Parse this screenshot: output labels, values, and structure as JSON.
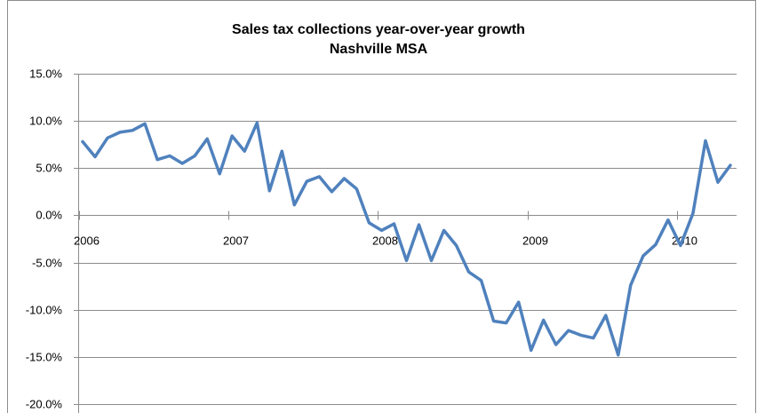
{
  "chart_data": {
    "type": "line",
    "title": "Sales tax collections year-over-year growth",
    "subtitle": "Nashville MSA",
    "xlabel": "",
    "ylabel": "",
    "ylim": [
      -20,
      15
    ],
    "y_ticks": [
      "15.0%",
      "10.0%",
      "5.0%",
      "0.0%",
      "-5.0%",
      "-10.0%",
      "-15.0%",
      "-20.0%"
    ],
    "y_tick_values": [
      15,
      10,
      5,
      0,
      -5,
      -10,
      -15,
      -20
    ],
    "x_ticks": [
      "2006",
      "2007",
      "2008",
      "2009",
      "2010"
    ],
    "grid": "horizontal",
    "line_color": "#4f81bd",
    "series": [
      {
        "values": [
          7.8,
          6.2,
          8.2,
          8.8,
          9.0,
          9.7,
          5.9,
          6.3,
          5.5,
          6.3,
          8.1,
          4.4,
          8.4,
          6.8,
          9.8,
          2.6,
          6.8,
          1.1,
          3.6,
          4.1,
          2.5,
          3.9,
          2.8,
          -0.8,
          -1.6,
          -0.9,
          -4.8,
          -1.0,
          -4.8,
          -1.6,
          -3.2,
          -6.0,
          -6.9,
          -11.2,
          -11.4,
          -9.2,
          -14.3,
          -11.1,
          -13.7,
          -12.2,
          -12.7,
          -13.0,
          -10.6,
          -14.8,
          -7.4,
          -4.3,
          -3.1,
          -0.5,
          -3.2,
          0.2,
          7.9,
          3.5,
          5.3
        ]
      }
    ]
  }
}
